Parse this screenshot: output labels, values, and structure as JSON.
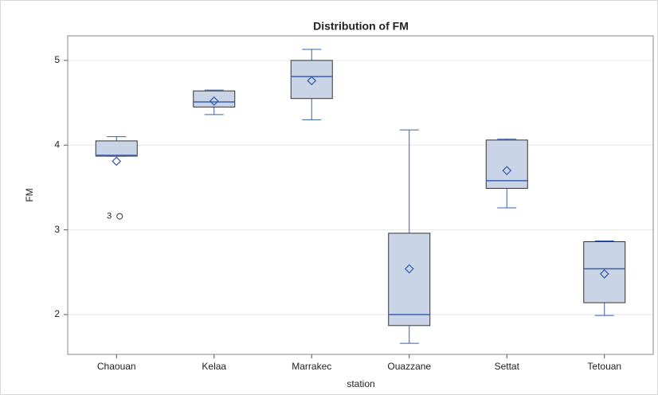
{
  "chart_data": {
    "type": "box",
    "title": "Distribution of FM",
    "x_label": "station",
    "y_label": "FM",
    "categories": [
      "Chaouan",
      "Kelaa",
      "Marrakec",
      "Ouazzane",
      "Settat",
      "Tetouan"
    ],
    "boxes": [
      {
        "min": 3.87,
        "q1": 3.87,
        "median": 3.88,
        "q3": 4.05,
        "max": 4.1,
        "mean": 3.81,
        "outliers": [
          {
            "value": 3.16,
            "label": "3"
          }
        ]
      },
      {
        "min": 4.36,
        "q1": 4.45,
        "median": 4.51,
        "q3": 4.64,
        "max": 4.65,
        "mean": 4.52
      },
      {
        "min": 4.3,
        "q1": 4.55,
        "median": 4.81,
        "q3": 5.0,
        "max": 5.13,
        "mean": 4.76
      },
      {
        "min": 1.66,
        "q1": 1.87,
        "median": 2.0,
        "q3": 2.96,
        "max": 4.18,
        "mean": 2.54
      },
      {
        "min": 3.26,
        "q1": 3.49,
        "median": 3.58,
        "q3": 4.06,
        "max": 4.07,
        "mean": 3.7
      },
      {
        "min": 1.99,
        "q1": 2.14,
        "median": 2.54,
        "q3": 2.86,
        "max": 2.87,
        "mean": 2.48
      }
    ],
    "box_color": "#c9d5e6",
    "line_color": "#3a5fb0",
    "ylim": [
      1.53,
      5.29
    ],
    "yticks": [
      2,
      3,
      4,
      5
    ],
    "grid": true
  }
}
